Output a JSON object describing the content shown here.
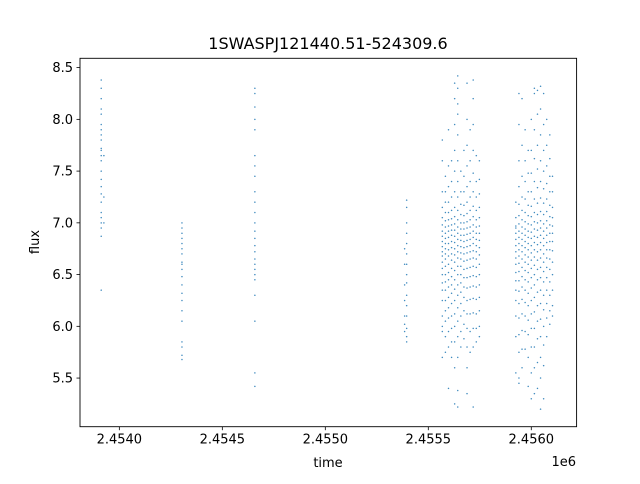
{
  "chart_data": {
    "type": "scatter",
    "title": "1SWASPJ121440.51-524309.6",
    "xlabel": "time",
    "ylabel": "flux",
    "x_offset_label": "1e6",
    "xlim": [
      2453809,
      2456220
    ],
    "ylim": [
      5.03,
      8.59
    ],
    "xticks": [
      2454000,
      2454500,
      2455000,
      2455500,
      2456000
    ],
    "xtick_labels": [
      "2.4540",
      "2.4545",
      "2.4550",
      "2.4555",
      "2.4560"
    ],
    "yticks": [
      5.5,
      6.0,
      6.5,
      7.0,
      7.5,
      8.0,
      8.5
    ],
    "ytick_labels": [
      "5.5",
      "6.0",
      "6.5",
      "7.0",
      "7.5",
      "8.0",
      "8.5"
    ],
    "grid": false,
    "marker_color": "#1f77b4",
    "columns": [
      {
        "t": 2453912,
        "flux": [
          8.38,
          8.3,
          8.2,
          8.1,
          8.05,
          7.95,
          7.85,
          7.8,
          7.72,
          7.65,
          7.6,
          7.5,
          7.42,
          7.35,
          7.28,
          7.2,
          7.1,
          7.05,
          7.0,
          6.95,
          6.87,
          6.35,
          7.7,
          7.9
        ]
      },
      {
        "t": 2453925,
        "flux": [
          7.65,
          7.25,
          7.0
        ]
      },
      {
        "t": 2454304,
        "flux": [
          7.0,
          6.95,
          6.9,
          6.85,
          6.75,
          6.7,
          6.62,
          6.55,
          6.48,
          6.4,
          6.32,
          6.25,
          6.15,
          6.05,
          5.85,
          5.8,
          5.72,
          5.68,
          6.6,
          6.8
        ]
      },
      {
        "t": 2454658,
        "flux": [
          8.3,
          8.25,
          8.12,
          8.0,
          7.9,
          7.65,
          7.55,
          7.45,
          7.3,
          7.2,
          7.1,
          7.0,
          6.92,
          6.85,
          6.78,
          6.72,
          6.65,
          6.6,
          6.55,
          6.5,
          6.45,
          6.3,
          6.05,
          5.55,
          5.42
        ]
      },
      {
        "t": 2455385,
        "flux": [
          6.75,
          6.6,
          6.4,
          6.25,
          6.1,
          6.02,
          5.95
        ]
      },
      {
        "t": 2455395,
        "flux": [
          7.22,
          7.15,
          7.0,
          6.9,
          6.8,
          6.7,
          6.6,
          6.5,
          6.42,
          6.3,
          6.2,
          6.1,
          5.98,
          5.9,
          5.85
        ]
      },
      {
        "t": 2455568,
        "flux": [
          7.8,
          7.6,
          7.3,
          7.15,
          7.05,
          6.98,
          6.92,
          6.87,
          6.82,
          6.77,
          6.72,
          6.68,
          6.62,
          6.56,
          6.5,
          6.42,
          6.35,
          6.25,
          6.1,
          5.95,
          5.7,
          6.0
        ]
      },
      {
        "t": 2455583,
        "flux": [
          7.45,
          7.3,
          7.2,
          7.1,
          7.02,
          6.96,
          6.9,
          6.85,
          6.8,
          6.75,
          6.7,
          6.65,
          6.58,
          6.5,
          6.43,
          6.35,
          6.25,
          6.15,
          6.05,
          5.9,
          5.75
        ]
      },
      {
        "t": 2455598,
        "flux": [
          7.9,
          7.55,
          7.35,
          7.2,
          7.1,
          7.03,
          6.97,
          6.92,
          6.86,
          6.8,
          6.74,
          6.68,
          6.6,
          6.52,
          6.45,
          6.38,
          6.28,
          6.18,
          6.08,
          5.95,
          5.8,
          5.4
        ]
      },
      {
        "t": 2455613,
        "flux": [
          7.6,
          7.4,
          7.25,
          7.12,
          7.04,
          6.98,
          6.93,
          6.88,
          6.82,
          6.76,
          6.7,
          6.64,
          6.56,
          6.48,
          6.4,
          6.32,
          6.22,
          6.1,
          5.98,
          5.85,
          5.7
        ]
      },
      {
        "t": 2455628,
        "flux": [
          8.35,
          8.2,
          7.95,
          7.7,
          7.5,
          7.3,
          7.15,
          7.06,
          6.99,
          6.93,
          6.87,
          6.81,
          6.75,
          6.69,
          6.62,
          6.54,
          6.45,
          6.36,
          6.25,
          6.12,
          6.0,
          5.85,
          5.6,
          5.25
        ]
      },
      {
        "t": 2455643,
        "flux": [
          8.42,
          8.3,
          8.15,
          8.05,
          7.85,
          7.6,
          7.4,
          7.25,
          7.12,
          7.03,
          6.96,
          6.9,
          6.84,
          6.78,
          6.72,
          6.66,
          6.58,
          6.5,
          6.4,
          6.3,
          6.18,
          6.05,
          5.9,
          5.7,
          5.38,
          5.22
        ]
      },
      {
        "t": 2455658,
        "flux": [
          7.5,
          7.3,
          7.18,
          7.08,
          7.0,
          6.94,
          6.88,
          6.83,
          6.77,
          6.71,
          6.65,
          6.58,
          6.5,
          6.42,
          6.33,
          6.22,
          6.1,
          5.95,
          5.8
        ]
      },
      {
        "t": 2455673,
        "flux": [
          7.7,
          7.45,
          7.3,
          7.17,
          7.07,
          7.0,
          6.94,
          6.88,
          6.82,
          6.76,
          6.7,
          6.63,
          6.55,
          6.47,
          6.38,
          6.28,
          6.15,
          6.02,
          5.88
        ]
      },
      {
        "t": 2455688,
        "flux": [
          8.35,
          8.0,
          7.75,
          7.55,
          7.35,
          7.2,
          7.09,
          7.01,
          6.95,
          6.89,
          6.83,
          6.77,
          6.71,
          6.64,
          6.56,
          6.47,
          6.37,
          6.25,
          6.12,
          5.98,
          5.8,
          5.6,
          5.35
        ]
      },
      {
        "t": 2455703,
        "flux": [
          7.9,
          7.6,
          7.4,
          7.25,
          7.12,
          7.03,
          6.96,
          6.9,
          6.84,
          6.78,
          6.72,
          6.65,
          6.57,
          6.48,
          6.38,
          6.26,
          6.12,
          5.95,
          5.75
        ]
      },
      {
        "t": 2455718,
        "flux": [
          8.38,
          8.2,
          7.95,
          7.7,
          7.48,
          7.3,
          7.16,
          7.06,
          6.98,
          6.92,
          6.86,
          6.8,
          6.73,
          6.66,
          6.58,
          6.49,
          6.39,
          6.27,
          6.13,
          5.98,
          5.8,
          5.22
        ]
      },
      {
        "t": 2455733,
        "flux": [
          7.65,
          7.4,
          7.25,
          7.12,
          7.03,
          6.96,
          6.9,
          6.84,
          6.78,
          6.72,
          6.65,
          6.57,
          6.48,
          6.38,
          6.26,
          6.12,
          5.98,
          5.85
        ]
      },
      {
        "t": 2455748,
        "flux": [
          7.6,
          7.42,
          7.28,
          7.15,
          7.05,
          6.97,
          6.9,
          6.83,
          6.76,
          6.69,
          6.6,
          6.5,
          6.4,
          6.28,
          6.15,
          6.0,
          5.9
        ]
      },
      {
        "t": 2455925,
        "flux": [
          7.2,
          7.05,
          6.97,
          6.9,
          6.84,
          6.78,
          6.72,
          6.66,
          6.6,
          6.52,
          6.44,
          6.35,
          6.25,
          6.1,
          5.9,
          5.55,
          6.95
        ]
      },
      {
        "t": 2455940,
        "flux": [
          8.25,
          7.95,
          7.6,
          7.35,
          7.18,
          7.07,
          6.99,
          6.92,
          6.86,
          6.8,
          6.74,
          6.68,
          6.61,
          6.53,
          6.44,
          6.34,
          6.22,
          6.08,
          5.92,
          5.75,
          5.5,
          5.45
        ]
      },
      {
        "t": 2455955,
        "flux": [
          8.2,
          7.75,
          7.45,
          7.25,
          7.12,
          7.03,
          6.96,
          6.9,
          6.84,
          6.78,
          6.72,
          6.65,
          6.57,
          6.48,
          6.38,
          6.26,
          6.12,
          5.96,
          5.78,
          5.6
        ]
      },
      {
        "t": 2455970,
        "flux": [
          7.9,
          7.6,
          7.4,
          7.23,
          7.1,
          7.01,
          6.94,
          6.88,
          6.82,
          6.76,
          6.69,
          6.62,
          6.54,
          6.45,
          6.35,
          6.23,
          6.1,
          5.95,
          5.78
        ]
      },
      {
        "t": 2455985,
        "flux": [
          7.7,
          7.48,
          7.3,
          7.17,
          7.07,
          6.99,
          6.92,
          6.86,
          6.8,
          6.74,
          6.67,
          6.6,
          6.52,
          6.43,
          6.32,
          6.2,
          6.06,
          5.92,
          5.7,
          5.42
        ]
      },
      {
        "t": 2456000,
        "flux": [
          8.0,
          7.7,
          7.48,
          7.3,
          7.16,
          7.06,
          6.98,
          6.91,
          6.85,
          6.78,
          6.71,
          6.64,
          6.56,
          6.47,
          6.37,
          6.25,
          6.12,
          5.98,
          5.8,
          5.55,
          5.3
        ]
      },
      {
        "t": 2456015,
        "flux": [
          8.3,
          8.25,
          7.9,
          7.62,
          7.4,
          7.23,
          7.1,
          7.01,
          6.94,
          6.87,
          6.81,
          6.74,
          6.67,
          6.59,
          6.5,
          6.4,
          6.28,
          6.14,
          5.98,
          5.8,
          5.6,
          5.35
        ]
      },
      {
        "t": 2456030,
        "flux": [
          8.28,
          8.05,
          7.75,
          7.52,
          7.34,
          7.19,
          7.08,
          7.0,
          6.93,
          6.86,
          6.79,
          6.72,
          6.64,
          6.55,
          6.45,
          6.33,
          6.2,
          6.05,
          5.88,
          5.65,
          5.4
        ]
      },
      {
        "t": 2456045,
        "flux": [
          8.32,
          8.1,
          7.85,
          7.6,
          7.4,
          7.24,
          7.11,
          7.02,
          6.95,
          6.88,
          6.81,
          6.74,
          6.66,
          6.57,
          6.47,
          6.35,
          6.22,
          6.07,
          5.9,
          5.7,
          5.5,
          5.2
        ]
      },
      {
        "t": 2456060,
        "flux": [
          8.25,
          7.95,
          7.7,
          7.5,
          7.33,
          7.19,
          7.08,
          6.99,
          6.92,
          6.85,
          6.78,
          6.7,
          6.62,
          6.53,
          6.43,
          6.3,
          6.16,
          6.0,
          5.82,
          5.62,
          5.3
        ]
      },
      {
        "t": 2456075,
        "flux": [
          8.0,
          7.75,
          7.55,
          7.38,
          7.23,
          7.11,
          7.02,
          6.95,
          6.88,
          6.81,
          6.74,
          6.66,
          6.57,
          6.47,
          6.35,
          6.22,
          6.08,
          5.9
        ]
      },
      {
        "t": 2456090,
        "flux": [
          7.85,
          7.62,
          7.45,
          7.3,
          7.17,
          7.06,
          6.98,
          6.9,
          6.82,
          6.74,
          6.65,
          6.55,
          6.43,
          6.3,
          6.15,
          6.02
        ]
      },
      {
        "t": 2456103,
        "flux": [
          7.45,
          7.3,
          7.15,
          7.05,
          6.97,
          6.9,
          6.82,
          6.73,
          6.62,
          6.5,
          6.35,
          6.2,
          6.1
        ]
      }
    ]
  }
}
